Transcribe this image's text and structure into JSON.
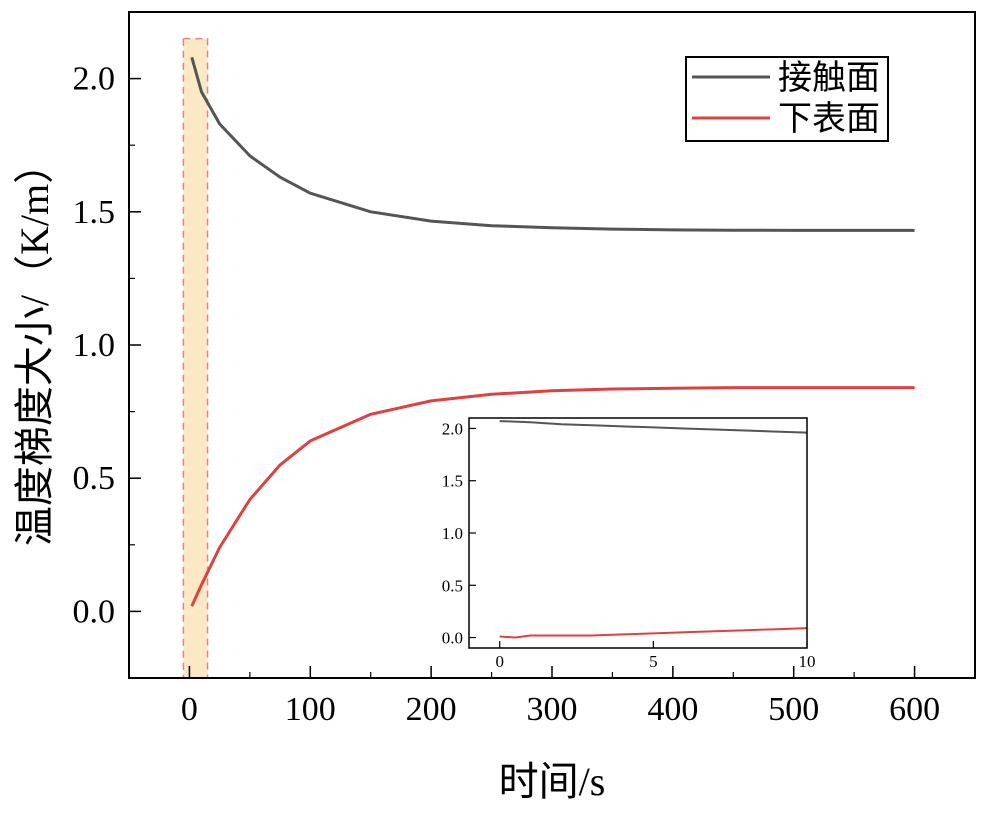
{
  "chart_data": [
    {
      "type": "line",
      "title": "",
      "xlabel": "时间/s",
      "ylabel": "温度梯度大小/（K/m）",
      "xlim": [
        -50,
        650
      ],
      "ylim": [
        -0.25,
        2.25
      ],
      "xticks": [
        "0",
        "100",
        "200",
        "300",
        "400",
        "500",
        "600"
      ],
      "yticks": [
        "0.0",
        "0.5",
        "1.0",
        "1.5",
        "2.0"
      ],
      "legend_position": "top-right",
      "highlight_region": {
        "x_range": [
          -5,
          15
        ],
        "y_range": [
          -0.25,
          2.15
        ],
        "color": "#fbe8c4",
        "border": "#f08080"
      },
      "series": [
        {
          "name": "接触面",
          "color": "#555555",
          "x": [
            2,
            10,
            25,
            50,
            75,
            100,
            150,
            200,
            250,
            300,
            350,
            400,
            450,
            500,
            550,
            600
          ],
          "y": [
            2.08,
            1.95,
            1.83,
            1.71,
            1.63,
            1.57,
            1.5,
            1.465,
            1.448,
            1.44,
            1.435,
            1.432,
            1.431,
            1.43,
            1.43,
            1.43
          ]
        },
        {
          "name": "下表面",
          "color": "#e04040",
          "x": [
            2,
            10,
            25,
            50,
            75,
            100,
            150,
            200,
            250,
            300,
            350,
            400,
            450,
            500,
            550,
            600
          ],
          "y": [
            0.02,
            0.1,
            0.24,
            0.42,
            0.55,
            0.64,
            0.74,
            0.79,
            0.815,
            0.828,
            0.835,
            0.838,
            0.84,
            0.84,
            0.84,
            0.84
          ]
        }
      ]
    },
    {
      "type": "line",
      "title": "",
      "xlabel": "",
      "ylabel": "",
      "xlim": [
        -1,
        10
      ],
      "ylim": [
        -0.1,
        2.1
      ],
      "xticks": [
        "0",
        "5",
        "10"
      ],
      "yticks": [
        "0.0",
        "0.5",
        "1.0",
        "1.5",
        "2.0"
      ],
      "series": [
        {
          "color": "#555555",
          "x": [
            0,
            1,
            2,
            3,
            4,
            5,
            6,
            7,
            8,
            9,
            10
          ],
          "y": [
            2.07,
            2.06,
            2.04,
            2.03,
            2.02,
            2.01,
            2.0,
            1.99,
            1.98,
            1.97,
            1.96
          ]
        },
        {
          "color": "#e04040",
          "x": [
            0,
            0.5,
            1,
            1.5,
            2,
            3,
            4,
            5,
            6,
            7,
            8,
            9,
            10
          ],
          "y": [
            0.01,
            0.0,
            0.02,
            0.02,
            0.02,
            0.02,
            0.03,
            0.04,
            0.05,
            0.06,
            0.07,
            0.08,
            0.09
          ]
        }
      ]
    }
  ]
}
